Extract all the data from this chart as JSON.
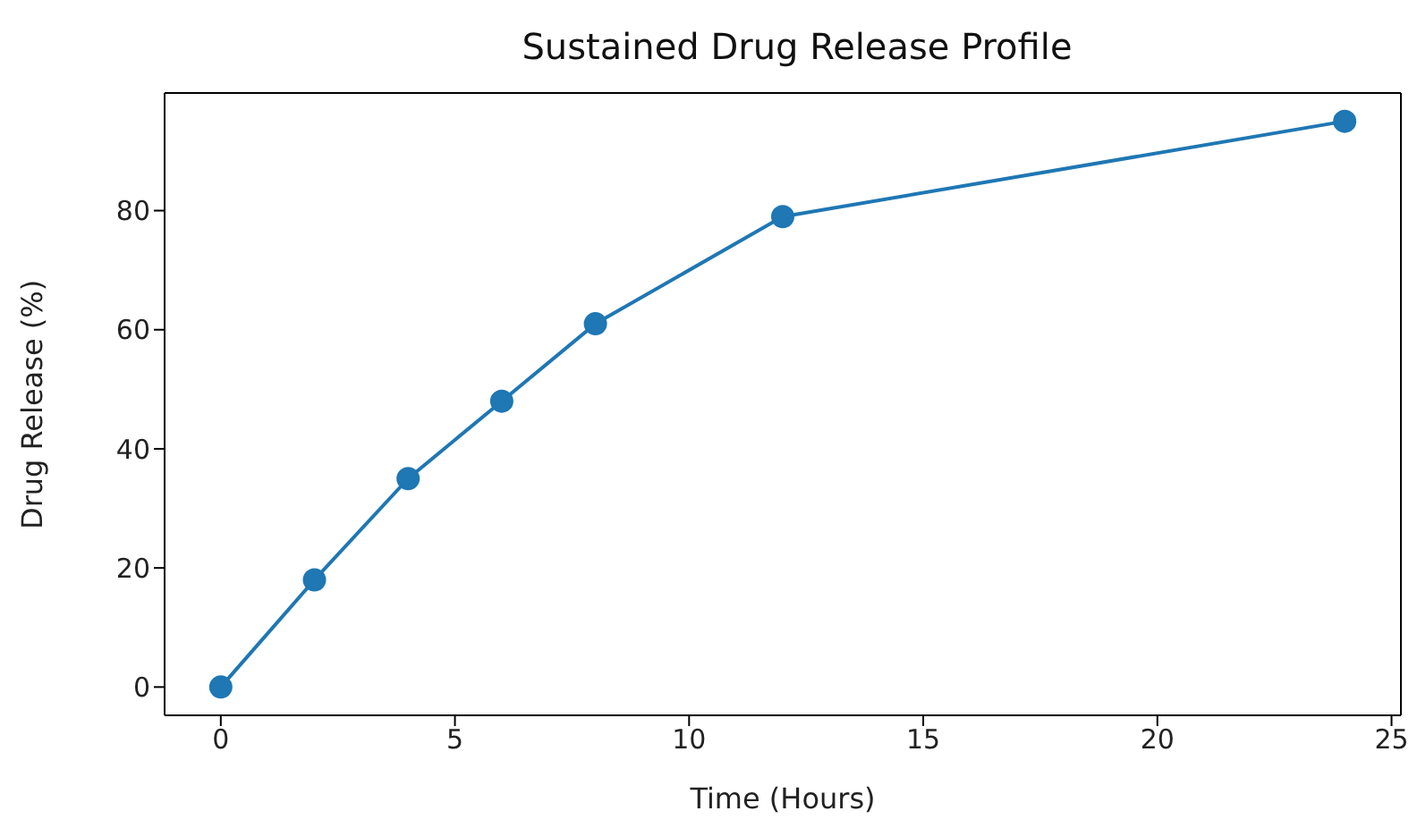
{
  "chart_data": {
    "type": "line",
    "title": "Sustained Drug Release Profile",
    "xlabel": "Time (Hours)",
    "ylabel": "Drug Release (%)",
    "x": [
      0,
      2,
      4,
      6,
      8,
      12,
      24
    ],
    "series": [
      {
        "color": "#1f77b4",
        "values": [
          0,
          18,
          35,
          48,
          61,
          79,
          95
        ]
      }
    ],
    "xlim": [
      -1.2,
      25.2
    ],
    "xticks": [
      0,
      5,
      10,
      15,
      20,
      25
    ],
    "ylim": [
      -4.75,
      99.75
    ],
    "yticks": [
      0,
      20,
      40,
      60,
      80
    ],
    "grid": false,
    "legend": false,
    "marker": "circle",
    "line_style": "solid"
  }
}
